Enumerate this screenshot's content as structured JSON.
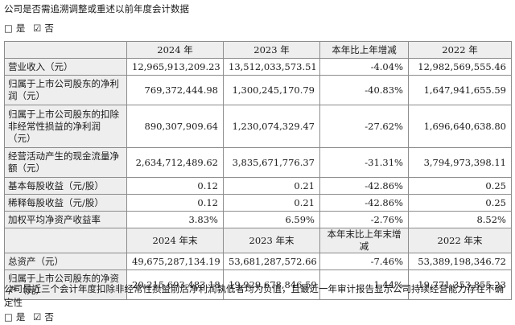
{
  "question": "公司是否需追溯调整或重述以前年度会计数据",
  "option_yes": "是",
  "option_no": "否",
  "check_unchecked": "□",
  "check_checked": "☑",
  "table": {
    "headers": [
      "",
      "2024 年",
      "2023 年",
      "本年比上年增减",
      "2022 年"
    ],
    "rows": [
      {
        "label": "营业收入（元）",
        "values": [
          "12,965,913,209.23",
          "13,512,033,573.51",
          "-4.04%",
          "12,982,569,555.46"
        ]
      },
      {
        "label": "归属于上市公司股东的净利润（元）",
        "values": [
          "769,372,444.98",
          "1,300,245,170.79",
          "-40.83%",
          "1,647,941,655.59"
        ]
      },
      {
        "label": "归属于上市公司股东的扣除非经常性损益的净利润（元）",
        "values": [
          "890,307,909.64",
          "1,230,074,329.47",
          "-27.62%",
          "1,696,640,638.80"
        ]
      },
      {
        "label": "经营活动产生的现金流量净额（元）",
        "values": [
          "2,634,712,489.62",
          "3,835,671,776.37",
          "-31.31%",
          "3,794,973,398.11"
        ]
      },
      {
        "label": "基本每股收益（元/股）",
        "values": [
          "0.12",
          "0.21",
          "-42.86%",
          "0.25"
        ]
      },
      {
        "label": "稀释每股收益（元/股）",
        "values": [
          "0.12",
          "0.21",
          "-42.86%",
          "0.25"
        ]
      },
      {
        "label": "加权平均净资产收益率",
        "values": [
          "3.83%",
          "6.59%",
          "-2.76%",
          "8.52%"
        ]
      }
    ],
    "headers2": [
      "",
      "2024 年末",
      "2023 年末",
      "本年末比上年末增减",
      "2022 年末"
    ],
    "rows2": [
      {
        "label": "总资产（元）",
        "values": [
          "49,675,287,134.19",
          "53,681,287,572.66",
          "-7.46%",
          "53,389,198,346.72"
        ]
      },
      {
        "label": "归属于上市公司股东的净资产（元）",
        "values": [
          "20,215,693,483.18",
          "19,929,678,846.59",
          "1.44%",
          "19,771,353,855.23"
        ]
      }
    ]
  },
  "note": "公司最近三个会计年度扣除非经常性损益前后净利润孰低者均为负值，且最近一年审计报告显示公司持续经营能力存在不确定性"
}
